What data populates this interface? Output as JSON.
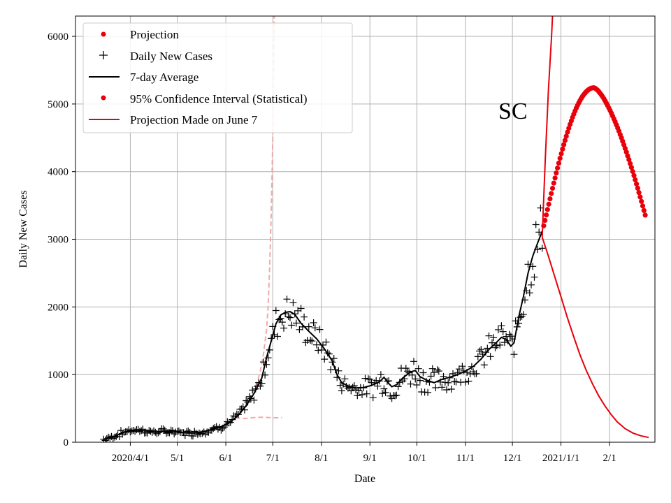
{
  "chart_data": {
    "type": "line",
    "title": "",
    "xlabel": "Date",
    "ylabel": "Daily New Cases",
    "annotation": "SC",
    "x_unit": "days since 2020-03-01",
    "xlim": [
      -4,
      366
    ],
    "ylim": [
      0,
      6300
    ],
    "grid": true,
    "legend_position": "top-left",
    "x_ticks": [
      {
        "value": 31,
        "label": "2020/4/1"
      },
      {
        "value": 61,
        "label": "5/1"
      },
      {
        "value": 92,
        "label": "6/1"
      },
      {
        "value": 122,
        "label": "7/1"
      },
      {
        "value": 153,
        "label": "8/1"
      },
      {
        "value": 184,
        "label": "9/1"
      },
      {
        "value": 214,
        "label": "10/1"
      },
      {
        "value": 245,
        "label": "11/1"
      },
      {
        "value": 275,
        "label": "12/1"
      },
      {
        "value": 306,
        "label": "2021/1/1"
      },
      {
        "value": 337,
        "label": "2/1"
      }
    ],
    "y_ticks": [
      0,
      1000,
      2000,
      3000,
      4000,
      5000,
      6000
    ],
    "legend": [
      {
        "label": "Projection",
        "marker": "dot",
        "color": "#e8000b"
      },
      {
        "label": "Daily New Cases",
        "marker": "plus",
        "color": "#000000"
      },
      {
        "label": "7-day Average",
        "marker": "line",
        "color": "#000000"
      },
      {
        "label": "95% Confidence Interval (Statistical)",
        "marker": "dot",
        "color": "#e8000b"
      },
      {
        "label": "Projection Made on June 7",
        "marker": "line",
        "color": "#e8000b"
      }
    ],
    "colors": {
      "projection": "#e8000b",
      "old_projection_dashed": "#f4a9a6",
      "data": "#000000",
      "grid": "#b0b0b0"
    },
    "series": [
      {
        "name": "7-day Average",
        "points": [
          [
            14,
            40
          ],
          [
            20,
            80
          ],
          [
            25,
            130
          ],
          [
            30,
            170
          ],
          [
            35,
            180
          ],
          [
            40,
            170
          ],
          [
            45,
            150
          ],
          [
            50,
            155
          ],
          [
            55,
            160
          ],
          [
            60,
            150
          ],
          [
            65,
            140
          ],
          [
            70,
            135
          ],
          [
            75,
            145
          ],
          [
            80,
            170
          ],
          [
            85,
            200
          ],
          [
            90,
            240
          ],
          [
            95,
            300
          ],
          [
            100,
            400
          ],
          [
            105,
            540
          ],
          [
            110,
            720
          ],
          [
            115,
            950
          ],
          [
            118,
            1250
          ],
          [
            121,
            1500
          ],
          [
            124,
            1750
          ],
          [
            127,
            1880
          ],
          [
            130,
            1920
          ],
          [
            133,
            1930
          ],
          [
            136,
            1890
          ],
          [
            140,
            1760
          ],
          [
            145,
            1640
          ],
          [
            150,
            1530
          ],
          [
            155,
            1380
          ],
          [
            160,
            1200
          ],
          [
            163,
            1000
          ],
          [
            166,
            880
          ],
          [
            170,
            830
          ],
          [
            175,
            800
          ],
          [
            180,
            810
          ],
          [
            185,
            840
          ],
          [
            190,
            890
          ],
          [
            193,
            960
          ],
          [
            196,
            870
          ],
          [
            198,
            820
          ],
          [
            201,
            850
          ],
          [
            205,
            950
          ],
          [
            210,
            1040
          ],
          [
            213,
            1060
          ],
          [
            216,
            970
          ],
          [
            220,
            920
          ],
          [
            225,
            880
          ],
          [
            230,
            930
          ],
          [
            235,
            960
          ],
          [
            240,
            1000
          ],
          [
            245,
            1050
          ],
          [
            250,
            1120
          ],
          [
            255,
            1230
          ],
          [
            260,
            1370
          ],
          [
            265,
            1480
          ],
          [
            268,
            1550
          ],
          [
            271,
            1520
          ],
          [
            274,
            1420
          ],
          [
            276,
            1470
          ],
          [
            279,
            1850
          ],
          [
            282,
            2150
          ],
          [
            285,
            2500
          ],
          [
            288,
            2750
          ],
          [
            291,
            2940
          ],
          [
            294,
            3120
          ]
        ]
      },
      {
        "name": "Projection",
        "x_start": 295,
        "x_end": 360,
        "peak_x": 327,
        "start_value": 3200,
        "peak_value": 5240,
        "end_value": 3340
      },
      {
        "name": "Projection Made on June 7",
        "points": [
          [
            294,
            3030
          ],
          [
            298,
            2750
          ],
          [
            302,
            2450
          ],
          [
            306,
            2150
          ],
          [
            310,
            1850
          ],
          [
            314,
            1570
          ],
          [
            318,
            1300
          ],
          [
            322,
            1070
          ],
          [
            326,
            870
          ],
          [
            330,
            690
          ],
          [
            334,
            540
          ],
          [
            338,
            410
          ],
          [
            342,
            300
          ],
          [
            347,
            200
          ],
          [
            352,
            135
          ],
          [
            357,
            95
          ],
          [
            362,
            70
          ]
        ]
      },
      {
        "name": "Projection Made on June 7 (upper)",
        "points": [
          [
            294,
            3030
          ],
          [
            296,
            4200
          ],
          [
            298,
            5200
          ],
          [
            300,
            6000
          ],
          [
            301,
            6500
          ]
        ]
      },
      {
        "name": "Earlier projection (dashed, upper)",
        "points": [
          [
            98,
            350
          ],
          [
            104,
            520
          ],
          [
            108,
            680
          ],
          [
            112,
            880
          ],
          [
            114,
            1050
          ],
          [
            116,
            1300
          ],
          [
            118,
            1650
          ],
          [
            119,
            2000
          ],
          [
            120,
            2600
          ],
          [
            121,
            3400
          ],
          [
            122,
            4500
          ],
          [
            123,
            6500
          ]
        ]
      },
      {
        "name": "Earlier projection (dashed, lower)",
        "points": [
          [
            98,
            360
          ],
          [
            104,
            350
          ],
          [
            110,
            365
          ],
          [
            116,
            370
          ],
          [
            122,
            360
          ],
          [
            128,
            365
          ]
        ]
      }
    ],
    "scatter_seed": 7
  }
}
